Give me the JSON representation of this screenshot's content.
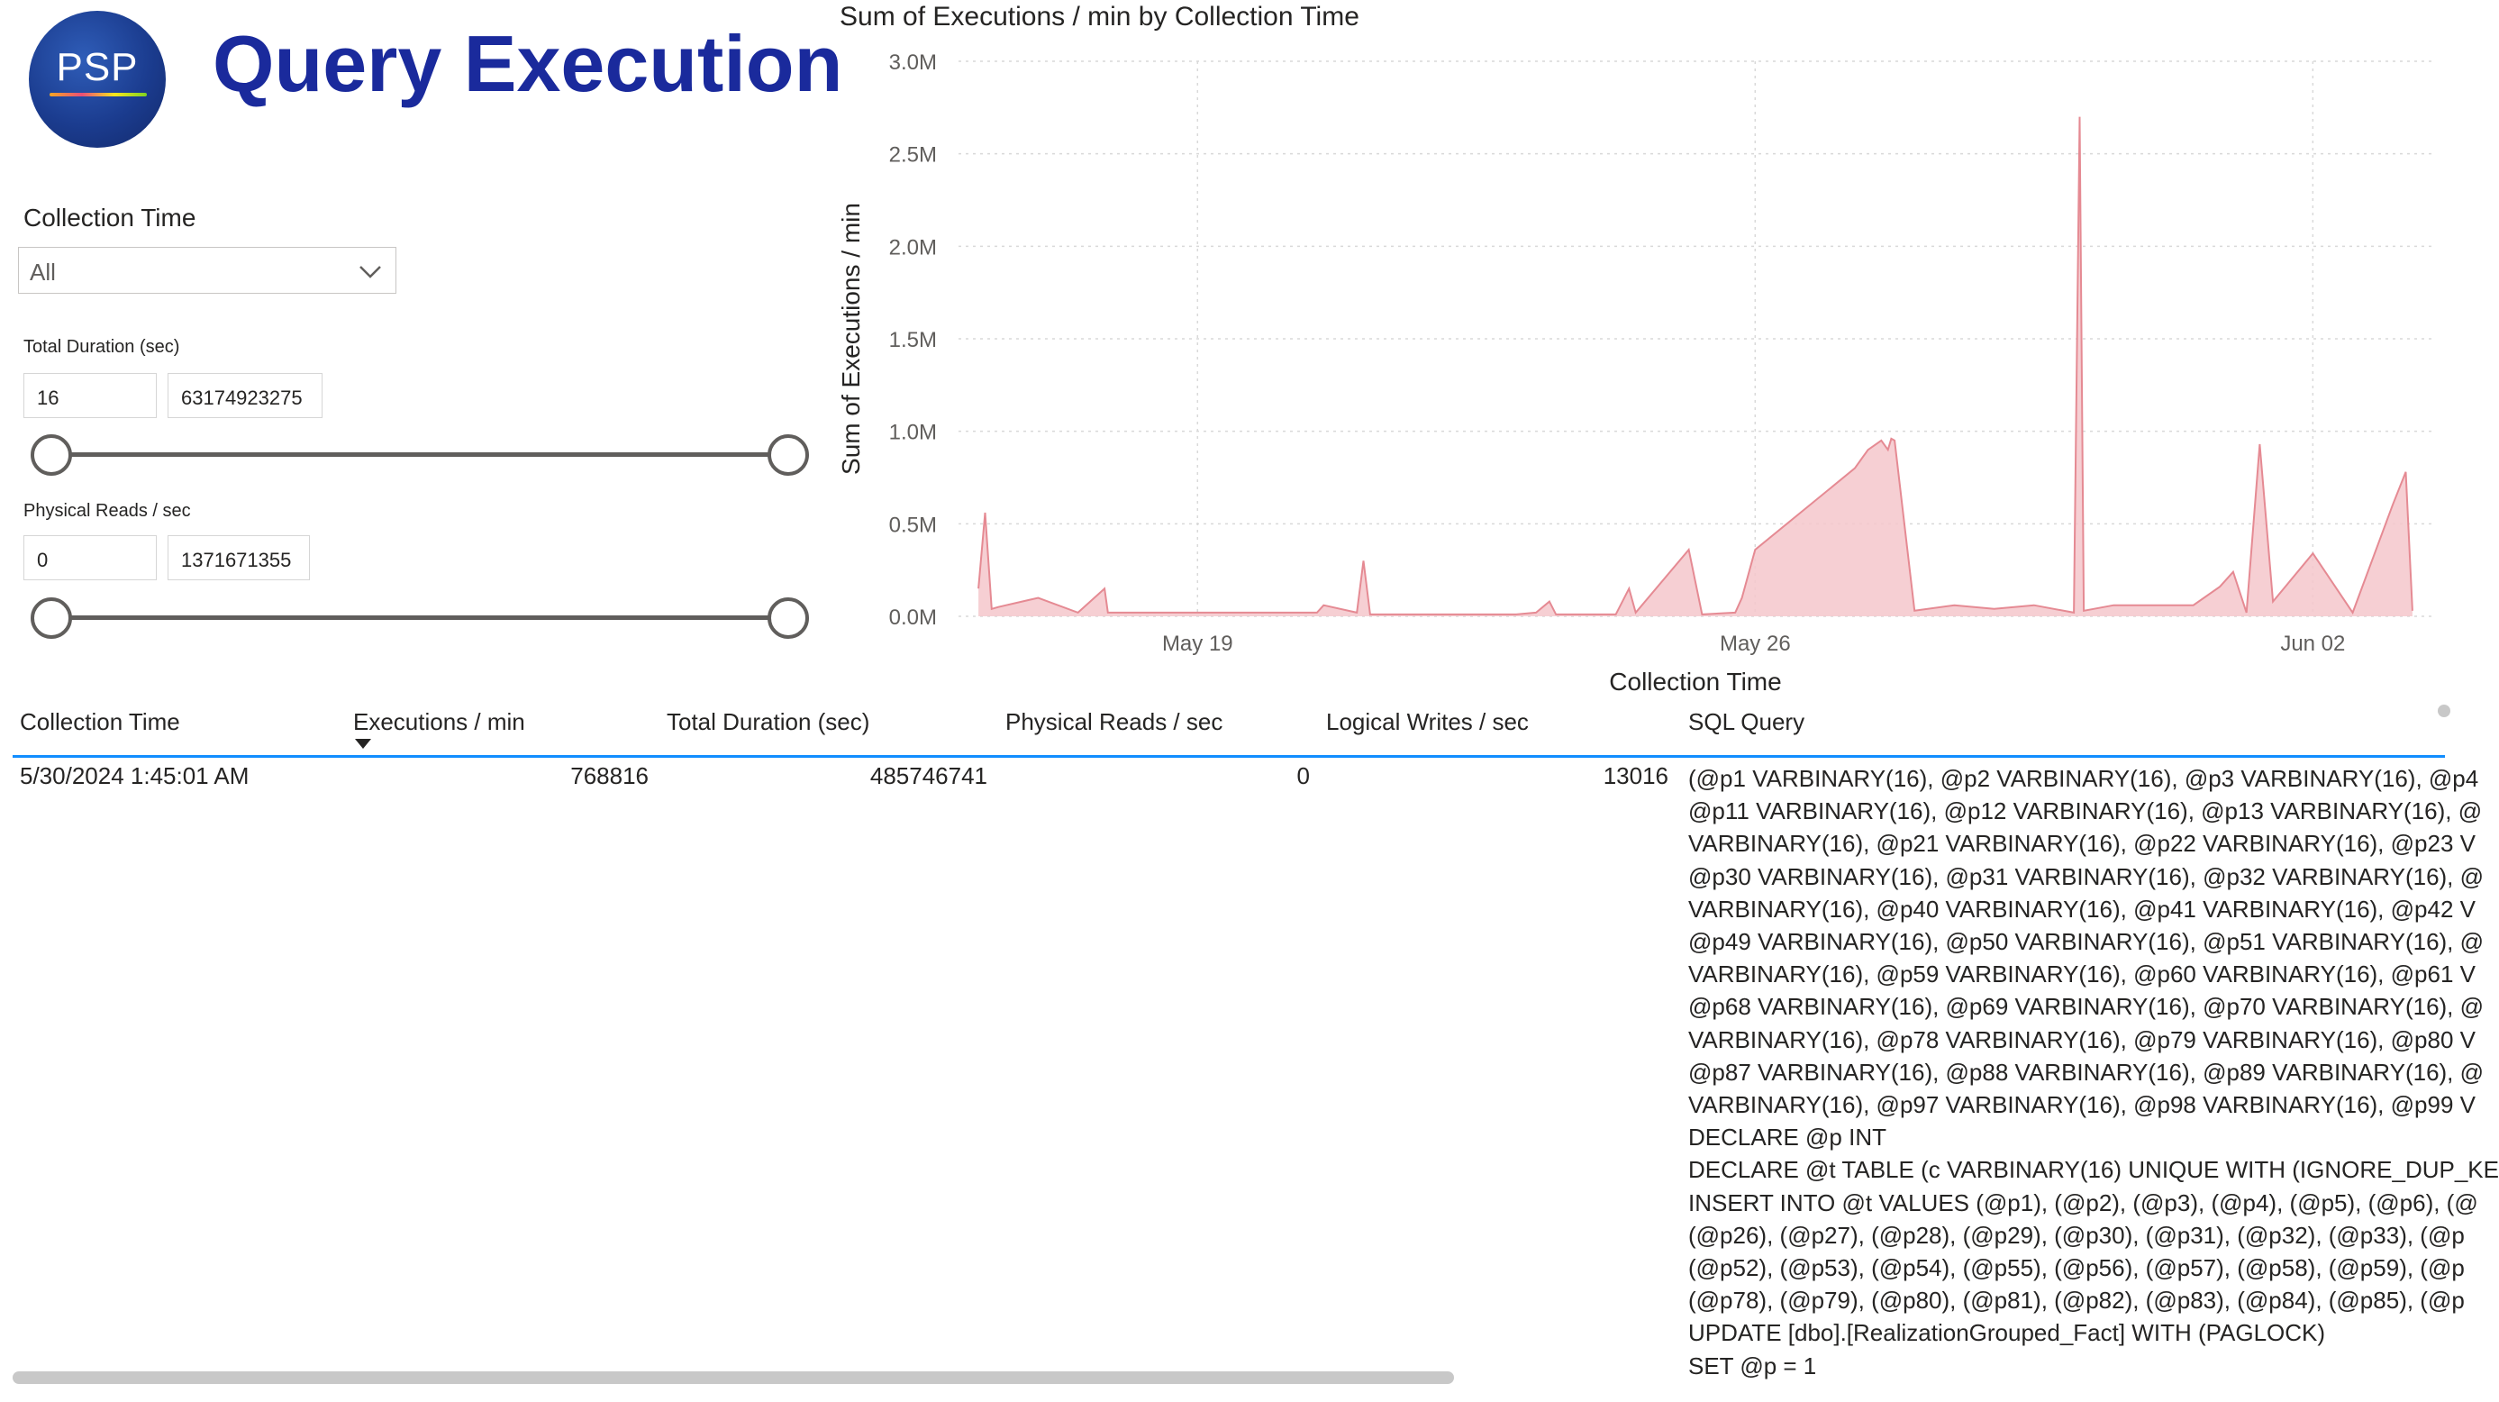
{
  "header": {
    "logo_text": "PSP",
    "title": "Query Execution"
  },
  "filters": {
    "collection_time": {
      "label": "Collection Time",
      "value": "All"
    },
    "total_duration": {
      "label": "Total Duration (sec)",
      "min": "16",
      "max": "63174923275"
    },
    "physical_reads": {
      "label": "Physical Reads / sec",
      "min": "0",
      "max": "1371671355"
    }
  },
  "chart": {
    "title": "Sum of Executions / min by Collection Time",
    "fill_color": "#f4c7cb",
    "line_color": "#e58a93"
  },
  "chart_data": {
    "type": "area",
    "title": "Sum of Executions / min by Collection Time",
    "xlabel": "Collection Time",
    "ylabel": "Sum of Executions / min",
    "x_ticks": [
      "May 19",
      "May 26",
      "Jun 02"
    ],
    "y_ticks": [
      "0.0M",
      "0.5M",
      "1.0M",
      "1.5M",
      "2.0M",
      "2.5M",
      "3.0M"
    ],
    "ylim": [
      0,
      3000000
    ],
    "xlim": [
      "2024-05-16",
      "2024-06-03"
    ],
    "grid": true,
    "series": [
      {
        "x": [
          "2024-05-16T06:00",
          "2024-05-16T08:00",
          "2024-05-16T10:00",
          "2024-05-16T12:00",
          "2024-05-17T00:00",
          "2024-05-17T12:00",
          "2024-05-17T20:00",
          "2024-05-17T21:00",
          "2024-05-18T06:00",
          "2024-05-18T08:00",
          "2024-05-19T00:00",
          "2024-05-20T00:00",
          "2024-05-20T12:00",
          "2024-05-20T14:00",
          "2024-05-21T00:00",
          "2024-05-21T02:00",
          "2024-05-21T04:00",
          "2024-05-21T12:00",
          "2024-05-22T12:00",
          "2024-05-23T00:00",
          "2024-05-23T06:00",
          "2024-05-23T10:00",
          "2024-05-23T12:00",
          "2024-05-24T06:00",
          "2024-05-24T10:00",
          "2024-05-24T12:00",
          "2024-05-25T04:00",
          "2024-05-25T08:00",
          "2024-05-25T18:00",
          "2024-05-25T20:00",
          "2024-05-26T00:00",
          "2024-05-27T06:00",
          "2024-05-27T08:00",
          "2024-05-27T10:00",
          "2024-05-27T14:00",
          "2024-05-27T16:00",
          "2024-05-27T17:00",
          "2024-05-27T18:00",
          "2024-05-28T00:00",
          "2024-05-28T12:00",
          "2024-05-29T00:00",
          "2024-05-29T12:00",
          "2024-05-30T00:00",
          "2024-05-30T01:45",
          "2024-05-30T03:00",
          "2024-05-30T12:00",
          "2024-05-31T00:00",
          "2024-05-31T12:00",
          "2024-05-31T20:00",
          "2024-06-01T00:00",
          "2024-06-01T04:00",
          "2024-06-01T08:00",
          "2024-06-01T12:00",
          "2024-06-02T00:00",
          "2024-06-02T12:00",
          "2024-06-03T00:00",
          "2024-06-03T04:00",
          "2024-06-03T06:00"
        ],
        "values": [
          150000,
          560000,
          40000,
          50000,
          100000,
          20000,
          150000,
          20000,
          20000,
          20000,
          20000,
          20000,
          20000,
          60000,
          20000,
          300000,
          10000,
          10000,
          10000,
          10000,
          20000,
          80000,
          10000,
          10000,
          150000,
          20000,
          360000,
          10000,
          20000,
          100000,
          360000,
          800000,
          850000,
          900000,
          950000,
          900000,
          960000,
          950000,
          30000,
          60000,
          40000,
          60000,
          20000,
          2700000,
          30000,
          60000,
          60000,
          60000,
          160000,
          240000,
          20000,
          930000,
          80000,
          340000,
          20000,
          600000,
          780000,
          30000
        ]
      }
    ]
  },
  "table": {
    "columns": [
      "Collection Time",
      "Executions / min",
      "Total Duration (sec)",
      "Physical Reads / sec",
      "Logical Writes / sec",
      "SQL Query"
    ],
    "rows": [
      {
        "collection_time": "5/30/2024 1:45:01 AM",
        "executions": "768816",
        "total_duration": "485746741",
        "physical_reads": "0",
        "logical_writes": "13016",
        "sql_lines": [
          "(@p1 VARBINARY(16), @p2 VARBINARY(16), @p3 VARBINARY(16), @p4",
          "@p11 VARBINARY(16), @p12 VARBINARY(16), @p13 VARBINARY(16), @",
          "VARBINARY(16), @p21 VARBINARY(16), @p22 VARBINARY(16), @p23 V",
          "@p30 VARBINARY(16), @p31 VARBINARY(16), @p32 VARBINARY(16), @",
          "VARBINARY(16), @p40 VARBINARY(16), @p41 VARBINARY(16), @p42 V",
          "@p49 VARBINARY(16), @p50 VARBINARY(16), @p51 VARBINARY(16), @",
          "VARBINARY(16), @p59 VARBINARY(16), @p60 VARBINARY(16), @p61 V",
          "@p68 VARBINARY(16), @p69 VARBINARY(16), @p70 VARBINARY(16), @",
          "VARBINARY(16), @p78 VARBINARY(16), @p79 VARBINARY(16), @p80 V",
          "@p87 VARBINARY(16), @p88 VARBINARY(16), @p89 VARBINARY(16), @",
          "VARBINARY(16), @p97 VARBINARY(16), @p98 VARBINARY(16), @p99 V",
          "DECLARE @p INT",
          "DECLARE @t TABLE (c VARBINARY(16) UNIQUE WITH (IGNORE_DUP_KE",
          "INSERT INTO @t VALUES (@p1), (@p2), (@p3), (@p4), (@p5), (@p6), (@",
          "(@p26), (@p27), (@p28), (@p29), (@p30), (@p31), (@p32), (@p33), (@p",
          "(@p52), (@p53), (@p54), (@p55), (@p56), (@p57), (@p58), (@p59), (@p",
          "(@p78), (@p79), (@p80), (@p81), (@p82), (@p83), (@p84), (@p85), (@p",
          "UPDATE [dbo].[RealizationGrouped_Fact] WITH (PAGLOCK)",
          "SET @p = 1"
        ]
      }
    ]
  }
}
